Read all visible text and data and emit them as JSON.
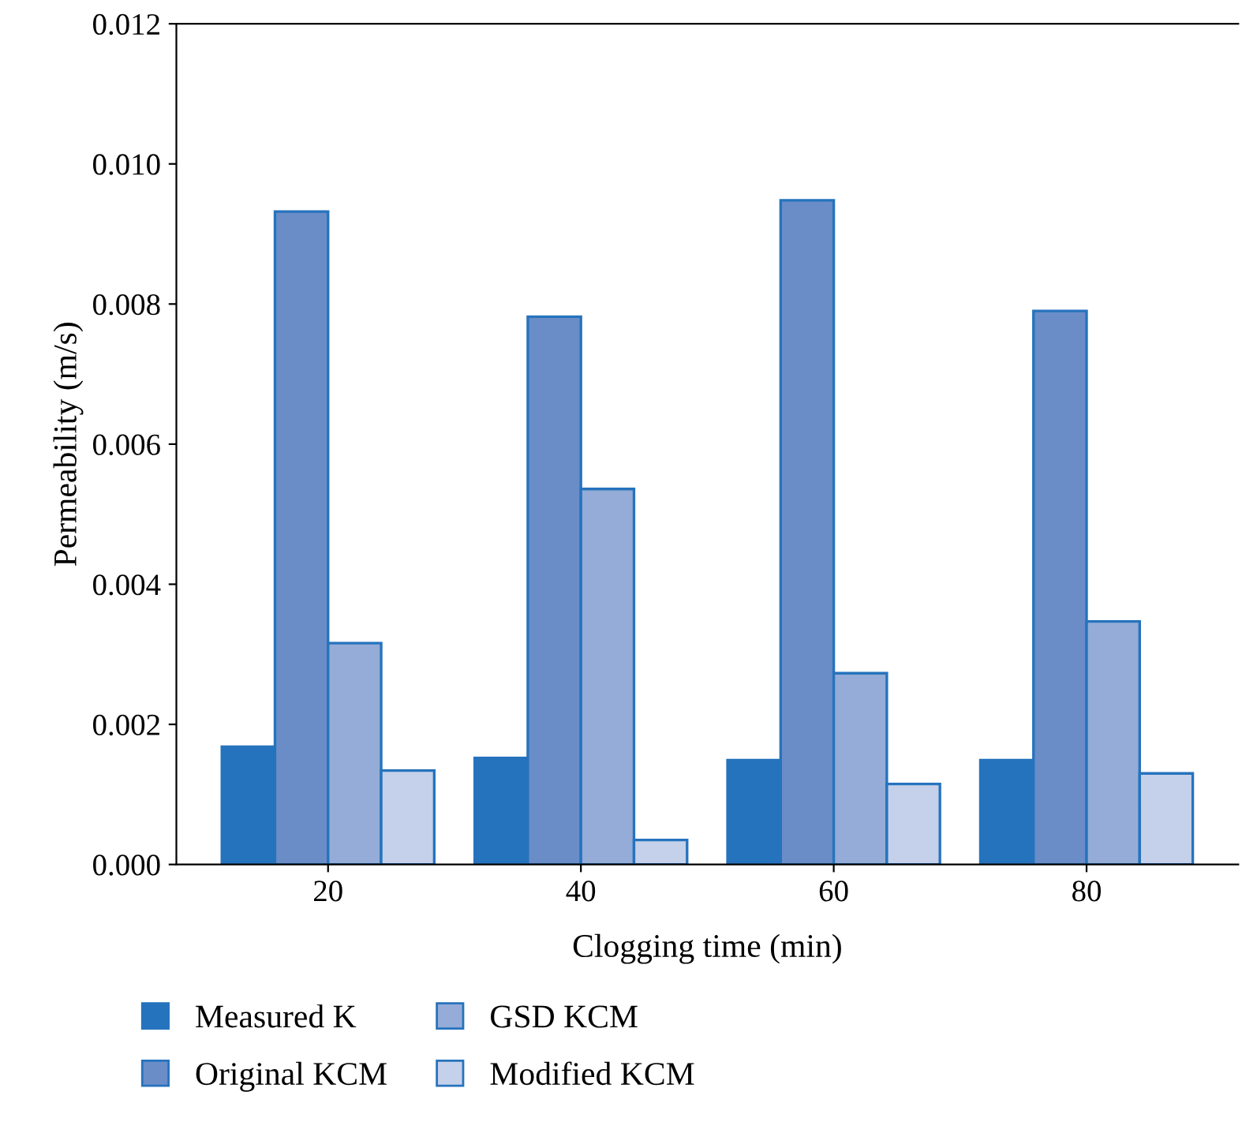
{
  "chart_data": {
    "type": "bar",
    "xlabel": "Clogging time (min)",
    "ylabel": "Permeability (m/s)",
    "categories": [
      "20",
      "40",
      "60",
      "80"
    ],
    "series": [
      {
        "name": "Measured K",
        "color": "#2673bd",
        "values": [
          0.00168,
          0.00152,
          0.00149,
          0.00149
        ]
      },
      {
        "name": "Original KCM",
        "color": "#6a8dc8",
        "values": [
          0.00932,
          0.00782,
          0.00948,
          0.0079
        ]
      },
      {
        "name": "GSD KCM",
        "color": "#94acd7",
        "values": [
          0.00316,
          0.00536,
          0.00273,
          0.00347
        ]
      },
      {
        "name": "Modified KCM",
        "color": "#c5d1ea",
        "values": [
          0.00134,
          0.00035,
          0.00115,
          0.0013
        ]
      }
    ],
    "ylim": [
      0,
      0.012
    ],
    "yticks": [
      {
        "value": 0,
        "label": "0.000"
      },
      {
        "value": 0.002,
        "label": "0.002"
      },
      {
        "value": 0.004,
        "label": "0.004"
      },
      {
        "value": 0.006,
        "label": "0.006"
      },
      {
        "value": 0.008,
        "label": "0.008"
      },
      {
        "value": 0.01,
        "label": "0.010"
      },
      {
        "value": 0.012,
        "label": "0.012"
      }
    ],
    "grid": false,
    "legend": "bottom"
  }
}
